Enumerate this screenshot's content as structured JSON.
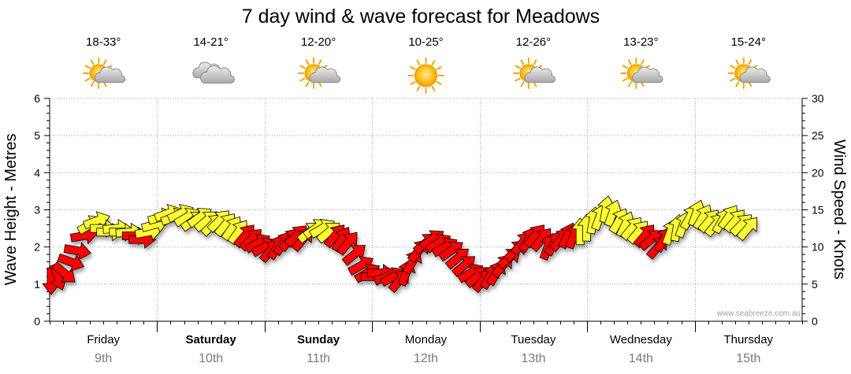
{
  "chart_data": {
    "type": "line",
    "title": "7 day wind & wave forecast for Meadows",
    "ylabel": "Wave Height - Metres",
    "y2label": "Wind Speed - Knots",
    "ylim": [
      0,
      6
    ],
    "y2lim": [
      0,
      30
    ],
    "yticks": [
      "0",
      "1",
      "2",
      "3",
      "4",
      "5",
      "6"
    ],
    "y2ticks": [
      "0",
      "5",
      "10",
      "15",
      "20",
      "25",
      "30"
    ],
    "grid": true,
    "watermark": "www.seabreeze.com.au",
    "days": [
      {
        "name": "Friday",
        "date": "9th",
        "bold": false,
        "temp": "18-33°",
        "icon": "sun-cloud-icon"
      },
      {
        "name": "Saturday",
        "date": "10th",
        "bold": true,
        "temp": "14-21°",
        "icon": "cloud-icon"
      },
      {
        "name": "Sunday",
        "date": "11th",
        "bold": true,
        "temp": "12-20°",
        "icon": "sun-cloud-icon"
      },
      {
        "name": "Monday",
        "date": "12th",
        "bold": false,
        "temp": "10-25°",
        "icon": "sun-icon"
      },
      {
        "name": "Tuesday",
        "date": "13th",
        "bold": false,
        "temp": "12-26°",
        "icon": "sun-cloud-icon"
      },
      {
        "name": "Wednesday",
        "date": "14th",
        "bold": false,
        "temp": "13-23°",
        "icon": "sun-cloud-icon"
      },
      {
        "name": "Thursday",
        "date": "15th",
        "bold": false,
        "temp": "15-24°",
        "icon": "sun-cloud-icon"
      }
    ],
    "series": [
      {
        "values": [
          [
            0.0,
            5.5,
            180
          ],
          [
            0.06,
            6.0,
            200
          ],
          [
            0.12,
            6.5,
            230
          ],
          [
            0.18,
            8.0,
            250
          ],
          [
            0.24,
            9.5,
            260
          ],
          [
            0.3,
            11.5,
            280
          ],
          [
            0.36,
            13.0,
            300
          ],
          [
            0.42,
            13.5,
            290
          ],
          [
            0.48,
            12.5,
            270
          ],
          [
            0.54,
            12.0,
            270
          ],
          [
            0.6,
            12.5,
            275
          ],
          [
            0.66,
            12.0,
            270
          ],
          [
            0.72,
            12.0,
            275
          ],
          [
            0.78,
            11.5,
            270
          ],
          [
            0.84,
            11.0,
            270
          ],
          [
            0.9,
            12.0,
            280
          ],
          [
            0.96,
            13.0,
            285
          ],
          [
            1.02,
            14.0,
            285
          ],
          [
            1.08,
            14.5,
            290
          ],
          [
            1.14,
            14.0,
            290
          ],
          [
            1.2,
            14.5,
            295
          ],
          [
            1.26,
            14.0,
            300
          ],
          [
            1.32,
            13.5,
            305
          ],
          [
            1.38,
            14.0,
            305
          ],
          [
            1.44,
            13.5,
            310
          ],
          [
            1.5,
            13.0,
            315
          ],
          [
            1.56,
            13.5,
            315
          ],
          [
            1.62,
            13.0,
            320
          ],
          [
            1.68,
            12.5,
            325
          ],
          [
            1.74,
            12.0,
            325
          ],
          [
            1.8,
            11.5,
            320
          ],
          [
            1.86,
            11.0,
            315
          ],
          [
            1.92,
            10.5,
            300
          ],
          [
            1.98,
            10.0,
            300
          ],
          [
            2.04,
            9.5,
            320
          ],
          [
            2.1,
            10.0,
            330
          ],
          [
            2.16,
            10.5,
            325
          ],
          [
            2.22,
            11.0,
            320
          ],
          [
            2.28,
            11.5,
            315
          ],
          [
            2.34,
            11.0,
            320
          ],
          [
            2.4,
            12.0,
            310
          ],
          [
            2.46,
            12.5,
            305
          ],
          [
            2.52,
            12.5,
            300
          ],
          [
            2.58,
            12.0,
            310
          ],
          [
            2.64,
            11.5,
            320
          ],
          [
            2.7,
            11.0,
            330
          ],
          [
            2.76,
            10.5,
            320
          ],
          [
            2.82,
            9.0,
            310
          ],
          [
            2.88,
            7.5,
            300
          ],
          [
            2.94,
            6.5,
            300
          ],
          [
            3.0,
            6.0,
            270
          ],
          [
            3.06,
            6.5,
            270
          ],
          [
            3.12,
            6.0,
            290
          ],
          [
            3.18,
            6.0,
            300
          ],
          [
            3.24,
            5.5,
            320
          ],
          [
            3.3,
            6.5,
            340
          ],
          [
            3.36,
            8.0,
            330
          ],
          [
            3.42,
            9.5,
            320
          ],
          [
            3.48,
            10.5,
            310
          ],
          [
            3.54,
            11.0,
            305
          ],
          [
            3.6,
            10.5,
            300
          ],
          [
            3.66,
            10.0,
            300
          ],
          [
            3.72,
            9.5,
            305
          ],
          [
            3.78,
            8.5,
            310
          ],
          [
            3.84,
            7.5,
            310
          ],
          [
            3.9,
            6.5,
            300
          ],
          [
            3.96,
            6.0,
            310
          ],
          [
            4.02,
            5.5,
            320
          ],
          [
            4.08,
            6.0,
            330
          ],
          [
            4.14,
            6.5,
            330
          ],
          [
            4.2,
            7.5,
            320
          ],
          [
            4.26,
            8.5,
            310
          ],
          [
            4.32,
            9.5,
            315
          ],
          [
            4.38,
            10.5,
            320
          ],
          [
            4.44,
            11.0,
            330
          ],
          [
            4.5,
            11.5,
            320
          ],
          [
            4.56,
            11.0,
            320
          ],
          [
            4.62,
            10.0,
            340
          ],
          [
            4.68,
            10.5,
            330
          ],
          [
            4.74,
            11.0,
            320
          ],
          [
            4.8,
            11.5,
            335
          ],
          [
            4.86,
            11.5,
            340
          ],
          [
            4.92,
            12.0,
            0
          ],
          [
            4.98,
            12.5,
            0
          ],
          [
            5.04,
            13.5,
            350
          ],
          [
            5.1,
            14.0,
            340
          ],
          [
            5.16,
            15.0,
            350
          ],
          [
            5.22,
            14.5,
            340
          ],
          [
            5.28,
            13.5,
            330
          ],
          [
            5.34,
            13.0,
            335
          ],
          [
            5.4,
            12.5,
            320
          ],
          [
            5.46,
            12.0,
            320
          ],
          [
            5.52,
            11.5,
            320
          ],
          [
            5.58,
            11.0,
            310
          ],
          [
            5.64,
            10.0,
            320
          ],
          [
            5.7,
            11.0,
            330
          ],
          [
            5.76,
            12.0,
            340
          ],
          [
            5.82,
            12.5,
            350
          ],
          [
            5.88,
            13.0,
            340
          ],
          [
            5.94,
            14.0,
            330
          ],
          [
            6.0,
            14.5,
            340
          ],
          [
            6.06,
            14.0,
            330
          ],
          [
            6.12,
            13.5,
            320
          ],
          [
            6.18,
            13.0,
            320
          ],
          [
            6.24,
            13.5,
            330
          ],
          [
            6.3,
            14.0,
            325
          ],
          [
            6.36,
            13.5,
            320
          ],
          [
            6.42,
            13.0,
            315
          ],
          [
            6.48,
            12.5,
            320
          ]
        ]
      }
    ],
    "windcolors": {
      "strong": "#ff0000",
      "moderate": "#ffff33",
      "outline": "#000000"
    }
  }
}
